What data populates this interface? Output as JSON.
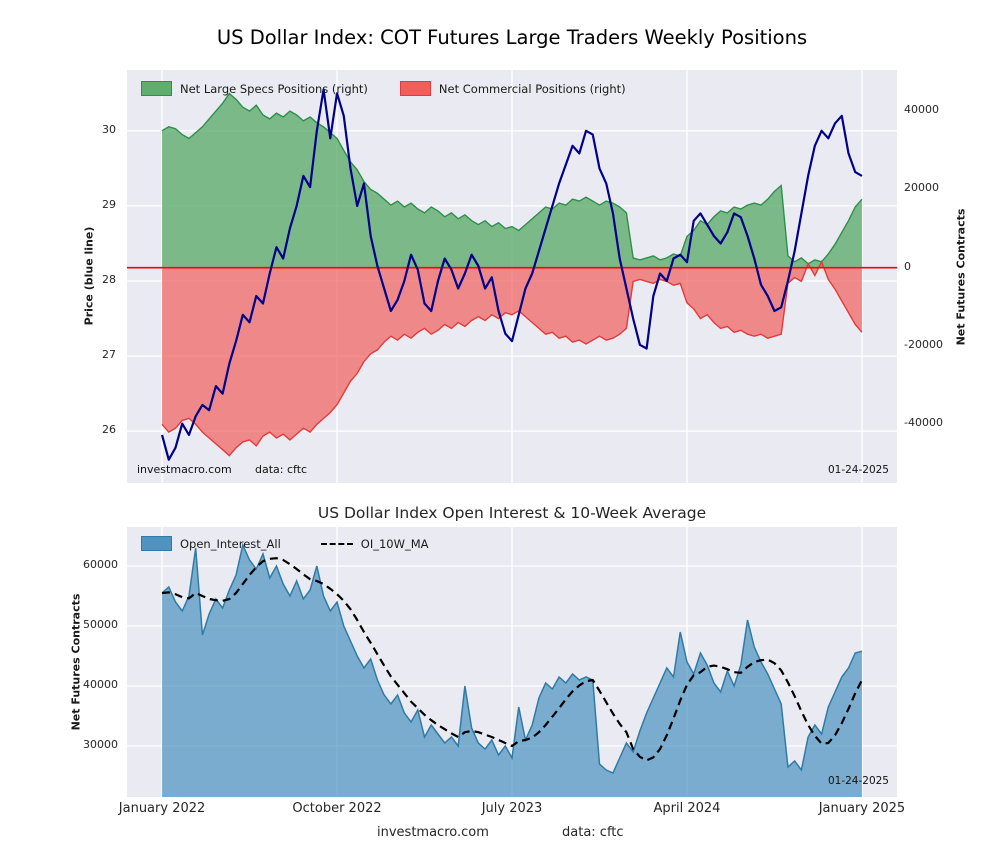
{
  "page": {
    "main_title": "US Dollar Index: COT Futures Large Traders Weekly Positions",
    "footer": {
      "site": "investmacro.com",
      "source": "data: cftc"
    }
  },
  "chart_data": [
    {
      "type": "area",
      "title": "US Dollar Index: COT Futures Large Traders Weekly Positions",
      "x_range": [
        "January 2022",
        "January 2025"
      ],
      "grid": true,
      "legend_position": "top-left",
      "left_axis": {
        "label": "Price (blue line)",
        "ticks": [
          30,
          29,
          28,
          27,
          26
        ],
        "range": [
          25.31,
          30.81
        ]
      },
      "right_axis": {
        "label": "Net Futures Contracts",
        "ticks": [
          40000,
          20000,
          0,
          -20000,
          -40000
        ],
        "range": [
          -55000,
          50500
        ]
      },
      "annotations": {
        "site": "investmacro.com",
        "source": "data: cftc",
        "date": "01-24-2025"
      },
      "zero_line": {
        "value": 0,
        "color": "#ff0000"
      },
      "plot_bg": "#eaeaf2",
      "series": [
        {
          "name": "Net Large Specs Positions (right)",
          "type": "area",
          "axis": "right",
          "fill": "#5fae6d",
          "edge": "#2f8f4a",
          "opacity": 0.8,
          "values": [
            35000,
            36000,
            35500,
            34000,
            33000,
            34500,
            36000,
            38000,
            40000,
            42000,
            44500,
            43000,
            41000,
            40000,
            41500,
            39000,
            38000,
            39500,
            38500,
            40000,
            39000,
            37500,
            38500,
            37000,
            36000,
            34500,
            33000,
            30000,
            27000,
            25000,
            22000,
            20000,
            19000,
            17500,
            16000,
            17000,
            15500,
            16500,
            15000,
            14000,
            15500,
            14500,
            13000,
            14000,
            12500,
            13500,
            12000,
            11000,
            12000,
            10500,
            11500,
            10000,
            10500,
            9500,
            11000,
            12500,
            14000,
            15500,
            15000,
            16500,
            16000,
            17500,
            17000,
            18000,
            17000,
            16000,
            17000,
            16500,
            15500,
            14000,
            2500,
            2000,
            2500,
            3000,
            2000,
            2500,
            3500,
            3000,
            8000,
            9500,
            12000,
            11000,
            13000,
            14500,
            14000,
            15500,
            15000,
            16000,
            16500,
            16000,
            17500,
            19500,
            21000,
            3000,
            1500,
            2500,
            1000,
            2000,
            1500,
            3500,
            6000,
            9000,
            12000,
            15500,
            17500
          ]
        },
        {
          "name": "Net Commercial Positions (right)",
          "type": "area",
          "axis": "right",
          "fill": "#f15f5c",
          "edge": "#e23b3b",
          "opacity": 0.7,
          "values": [
            -40000,
            -42000,
            -41000,
            -39000,
            -38500,
            -40000,
            -42000,
            -43500,
            -45000,
            -46500,
            -48000,
            -46000,
            -44500,
            -44000,
            -45500,
            -43000,
            -42000,
            -43500,
            -42500,
            -44000,
            -42500,
            -41000,
            -42000,
            -40000,
            -38500,
            -37000,
            -35000,
            -32000,
            -29000,
            -27000,
            -24000,
            -22000,
            -21000,
            -19000,
            -17500,
            -18500,
            -17000,
            -18000,
            -16500,
            -15500,
            -17000,
            -16000,
            -14500,
            -15500,
            -14000,
            -15000,
            -13500,
            -12500,
            -13500,
            -12000,
            -13000,
            -11500,
            -12000,
            -11000,
            -12500,
            -14000,
            -15500,
            -17000,
            -16500,
            -18000,
            -17500,
            -19000,
            -18500,
            -19500,
            -18500,
            -17500,
            -18500,
            -18000,
            -17000,
            -15500,
            -3500,
            -3000,
            -3500,
            -4000,
            -3000,
            -3500,
            -4500,
            -4000,
            -9000,
            -10500,
            -13000,
            -12000,
            -14000,
            -15500,
            -15000,
            -16500,
            -16000,
            -17000,
            -17500,
            -17000,
            -18000,
            -17500,
            -17000,
            -4000,
            -2500,
            -3500,
            1000,
            -2000,
            1500,
            -3000,
            -5500,
            -8500,
            -11500,
            -14500,
            -16500
          ]
        },
        {
          "name": "Price",
          "type": "line",
          "axis": "left",
          "color": "#00008b",
          "values": [
            25.95,
            25.62,
            25.78,
            26.1,
            25.95,
            26.2,
            26.35,
            26.28,
            26.6,
            26.5,
            26.9,
            27.2,
            27.55,
            27.45,
            27.8,
            27.7,
            28.1,
            28.45,
            28.3,
            28.7,
            29.0,
            29.4,
            29.25,
            30.0,
            30.55,
            29.9,
            30.5,
            30.2,
            29.5,
            29.0,
            29.3,
            28.6,
            28.2,
            27.9,
            27.6,
            27.75,
            28.0,
            28.35,
            28.15,
            27.7,
            27.6,
            28.0,
            28.3,
            28.15,
            27.9,
            28.1,
            28.35,
            28.2,
            27.9,
            28.05,
            27.6,
            27.3,
            27.2,
            27.55,
            27.9,
            28.1,
            28.4,
            28.7,
            29.0,
            29.3,
            29.55,
            29.8,
            29.7,
            30.0,
            29.95,
            29.5,
            29.3,
            28.9,
            28.3,
            27.9,
            27.5,
            27.15,
            27.1,
            27.8,
            28.1,
            28.0,
            28.3,
            28.35,
            28.25,
            28.8,
            28.9,
            28.75,
            28.6,
            28.5,
            28.65,
            28.9,
            28.85,
            28.6,
            28.3,
            27.95,
            27.8,
            27.6,
            27.65,
            28.0,
            28.4,
            28.9,
            29.4,
            29.8,
            30.0,
            29.9,
            30.1,
            30.2,
            29.7,
            29.45,
            29.4
          ]
        }
      ]
    },
    {
      "type": "area",
      "title": "US Dollar Index Open Interest & 10-Week Average",
      "grid": true,
      "legend_position": "top-left",
      "y_axis": {
        "label": "Net Futures Contracts",
        "ticks": [
          60000,
          50000,
          40000,
          30000
        ],
        "range": [
          21500,
          66500
        ]
      },
      "x_ticks": [
        "January 2022",
        "October 2022",
        "July 2023",
        "April 2024",
        "January 2025"
      ],
      "annotations": {
        "date": "01-24-2025"
      },
      "plot_bg": "#eaeaf2",
      "series": [
        {
          "name": "Open_Interest_All",
          "type": "area",
          "fill": "#4f94c0",
          "edge": "#2f7ba6",
          "opacity": 0.72,
          "values": [
            55500,
            56500,
            54000,
            52500,
            55000,
            63000,
            48500,
            52000,
            54500,
            53000,
            56000,
            58500,
            63500,
            61000,
            59500,
            62000,
            58000,
            60000,
            57000,
            55000,
            57500,
            54500,
            56000,
            60000,
            55000,
            52500,
            54000,
            50000,
            47500,
            45000,
            43000,
            44500,
            41000,
            38500,
            37000,
            38500,
            35500,
            34000,
            36000,
            31500,
            33500,
            32000,
            30500,
            31500,
            30000,
            40000,
            33000,
            30500,
            29500,
            31000,
            28500,
            30000,
            28000,
            36500,
            31000,
            33500,
            38000,
            40500,
            39500,
            41500,
            40500,
            42000,
            41000,
            41500,
            41000,
            27000,
            26000,
            25500,
            28000,
            30500,
            29000,
            32500,
            35500,
            38000,
            40500,
            43000,
            41500,
            49000,
            44000,
            42000,
            45500,
            43500,
            40500,
            39000,
            42500,
            40000,
            43500,
            51000,
            46500,
            44000,
            42000,
            39500,
            37000,
            26500,
            27500,
            26000,
            31500,
            33500,
            32000,
            36500,
            39000,
            41500,
            43000,
            45500,
            45800
          ]
        },
        {
          "name": "OI_10W_MA",
          "type": "dashed-line",
          "color": "#000000",
          "values": [
            55500,
            55600,
            55300,
            54800,
            54600,
            55500,
            55000,
            54500,
            54300,
            54200,
            54500,
            55500,
            57000,
            58500,
            59800,
            60800,
            61200,
            61300,
            61000,
            60300,
            59500,
            58600,
            57800,
            57500,
            57000,
            56200,
            55300,
            54200,
            52800,
            51000,
            49000,
            47200,
            45300,
            43400,
            41600,
            40200,
            38800,
            37400,
            36300,
            35200,
            34300,
            33500,
            32800,
            32100,
            31500,
            32300,
            32500,
            32300,
            31900,
            31500,
            31000,
            30500,
            30000,
            30800,
            31000,
            31400,
            32300,
            33500,
            34900,
            36300,
            37800,
            39100,
            40100,
            40800,
            41000,
            39200,
            37300,
            35400,
            33700,
            32300,
            29500,
            28200,
            27600,
            28100,
            29500,
            31800,
            34600,
            37600,
            40200,
            41800,
            42300,
            43200,
            43400,
            43200,
            42800,
            42300,
            42200,
            43200,
            44000,
            44300,
            44400,
            43800,
            42600,
            40600,
            38300,
            35800,
            33500,
            31700,
            30400,
            30500,
            31800,
            33800,
            36200,
            38800,
            41000
          ]
        }
      ]
    }
  ]
}
